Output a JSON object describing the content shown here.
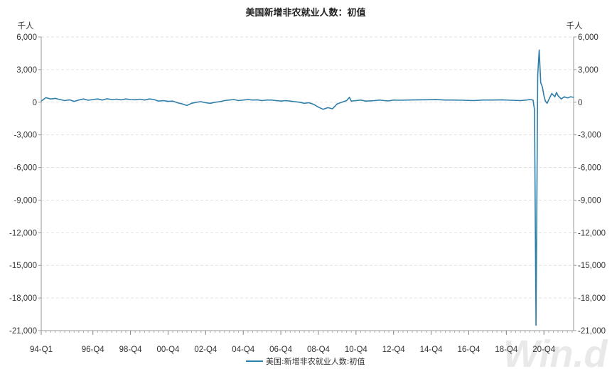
{
  "chart_data": {
    "type": "line",
    "title": "美国新增非农就业人数：初值",
    "y_unit_left": "千人",
    "y_unit_right": "千人",
    "ylim": [
      -21000,
      6000
    ],
    "y_ticks": [
      6000,
      3000,
      0,
      -3000,
      -6000,
      -9000,
      -12000,
      -15000,
      -18000,
      -21000
    ],
    "y_tick_labels": [
      "6,000",
      "3,000",
      "0",
      "-3,000",
      "-6,000",
      "-9,000",
      "-12,000",
      "-15,000",
      "-18,000",
      "-21,000"
    ],
    "x_range": [
      1994.0,
      2022.33
    ],
    "x_ticks": [
      1994.0,
      1996.75,
      1998.75,
      2000.75,
      2002.75,
      2004.75,
      2006.75,
      2008.75,
      2010.75,
      2012.75,
      2014.75,
      2016.75,
      2018.75,
      2020.75
    ],
    "x_tick_labels": [
      "94-Q1",
      "96-Q4",
      "98-Q4",
      "00-Q4",
      "02-Q4",
      "04-Q4",
      "06-Q4",
      "08-Q4",
      "10-Q4",
      "12-Q4",
      "14-Q4",
      "16-Q4",
      "18-Q4",
      "20-Q4"
    ],
    "grid": true,
    "legend_position": "bottom",
    "series": [
      {
        "name": "美国:新增非农就业人数:初值",
        "color": "#2e7eaa",
        "x": [
          1994.0,
          1994.25,
          1994.5,
          1994.75,
          1995.0,
          1995.25,
          1995.5,
          1995.75,
          1996.0,
          1996.25,
          1996.5,
          1996.75,
          1997.0,
          1997.25,
          1997.5,
          1997.75,
          1998.0,
          1998.25,
          1998.5,
          1998.75,
          1999.0,
          1999.25,
          1999.5,
          1999.75,
          2000.0,
          2000.25,
          2000.5,
          2000.75,
          2001.0,
          2001.25,
          2001.5,
          2001.75,
          2002.0,
          2002.25,
          2002.5,
          2002.75,
          2003.0,
          2003.25,
          2003.5,
          2003.75,
          2004.0,
          2004.25,
          2004.5,
          2004.75,
          2005.0,
          2005.25,
          2005.5,
          2005.75,
          2006.0,
          2006.25,
          2006.5,
          2006.75,
          2007.0,
          2007.25,
          2007.5,
          2007.75,
          2008.0,
          2008.25,
          2008.5,
          2008.75,
          2009.0,
          2009.25,
          2009.5,
          2009.75,
          2010.0,
          2010.25,
          2010.4,
          2010.5,
          2010.75,
          2011.0,
          2011.25,
          2011.5,
          2011.75,
          2012.0,
          2012.25,
          2012.5,
          2012.75,
          2013.0,
          2013.5,
          2014.0,
          2014.5,
          2015.0,
          2015.5,
          2016.0,
          2016.5,
          2017.0,
          2017.5,
          2018.0,
          2018.5,
          2019.0,
          2019.5,
          2019.83,
          2020.0,
          2020.17,
          2020.25,
          2020.33,
          2020.42,
          2020.5,
          2020.58,
          2020.67,
          2020.75,
          2020.83,
          2020.92,
          2021.0,
          2021.17,
          2021.33,
          2021.42,
          2021.5,
          2021.67,
          2021.83,
          2022.0,
          2022.17,
          2022.33
        ],
        "values": [
          100,
          420,
          300,
          350,
          250,
          150,
          220,
          80,
          200,
          300,
          180,
          250,
          300,
          200,
          320,
          250,
          280,
          220,
          300,
          250,
          230,
          280,
          200,
          300,
          250,
          100,
          150,
          80,
          100,
          -50,
          -150,
          -300,
          -100,
          0,
          50,
          -50,
          -100,
          0,
          50,
          150,
          200,
          250,
          150,
          200,
          250,
          200,
          220,
          150,
          200,
          200,
          150,
          100,
          150,
          100,
          50,
          0,
          -100,
          -50,
          -200,
          -450,
          -650,
          -500,
          -600,
          -150,
          0,
          150,
          450,
          100,
          150,
          200,
          100,
          120,
          150,
          200,
          150,
          120,
          200,
          180,
          200,
          220,
          230,
          240,
          200,
          200,
          180,
          150,
          200,
          200,
          220,
          180,
          150,
          200,
          250,
          200,
          -700,
          -20500,
          2500,
          4800,
          1800,
          1400,
          600,
          100,
          -100,
          200,
          800,
          500,
          900,
          600,
          300,
          500,
          400,
          500,
          450
        ]
      }
    ]
  },
  "watermark": "Win.d"
}
